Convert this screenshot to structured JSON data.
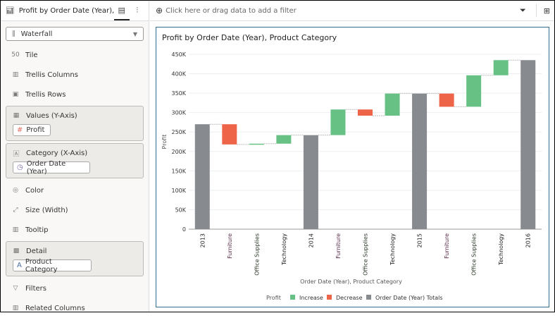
{
  "left_panel": {
    "viz_title": "Profit by Order Date (Year), Pr...",
    "chart_type": "Waterfall",
    "items": [
      {
        "label": "Tile",
        "icon": "tile-icon"
      },
      {
        "label": "Trellis Columns",
        "icon": "trellis-columns-icon"
      },
      {
        "label": "Trellis Rows",
        "icon": "trellis-rows-icon"
      }
    ],
    "values_well": {
      "label": "Values (Y-Axis)",
      "pill": "Profit"
    },
    "category_well": {
      "label": "Category (X-Axis)",
      "pill": "Order Date (Year)"
    },
    "items2": [
      {
        "label": "Color",
        "icon": "palette-icon"
      },
      {
        "label": "Size (Width)",
        "icon": "resize-icon"
      },
      {
        "label": "Tooltip",
        "icon": "tooltip-icon"
      }
    ],
    "detail_well": {
      "label": "Detail",
      "pill": "Product Category"
    },
    "items3": [
      {
        "label": "Filters",
        "icon": "filter-icon"
      },
      {
        "label": "Related Columns",
        "icon": "columns-icon"
      }
    ]
  },
  "filter_bar": {
    "placeholder": "Click here or drag data to add a filter"
  },
  "chart_data": {
    "type": "waterfall",
    "title": "Profit by Order Date (Year), Product Category",
    "xlabel": "Order Date (Year), Product Category",
    "ylabel": "Profit",
    "ylim": [
      0,
      450000
    ],
    "yticks": [
      "0",
      "50K",
      "100K",
      "150K",
      "200K",
      "250K",
      "300K",
      "350K",
      "400K",
      "450K"
    ],
    "categories": [
      "2013",
      "Furniture",
      "Office Supplies",
      "Technology",
      "2014",
      "Furniture",
      "Office Supplies",
      "Technology",
      "2015",
      "Furniture",
      "Office Supplies",
      "Technology",
      "2016"
    ],
    "kinds": [
      "total",
      "change",
      "change",
      "change",
      "total",
      "change",
      "change",
      "change",
      "total",
      "change",
      "change",
      "change",
      "total"
    ],
    "values": [
      270000,
      -52000,
      2000,
      22000,
      242000,
      66000,
      -16000,
      57000,
      349000,
      -34000,
      81000,
      39000,
      435000
    ],
    "legend": {
      "title": "Profit",
      "items": [
        "Increase",
        "Decrease",
        "Order Date (Year) Totals"
      ],
      "position": "bottom"
    },
    "colors": {
      "increase": "#67c184",
      "decrease": "#ee6449",
      "total": "#878a8e"
    },
    "grid": true
  }
}
